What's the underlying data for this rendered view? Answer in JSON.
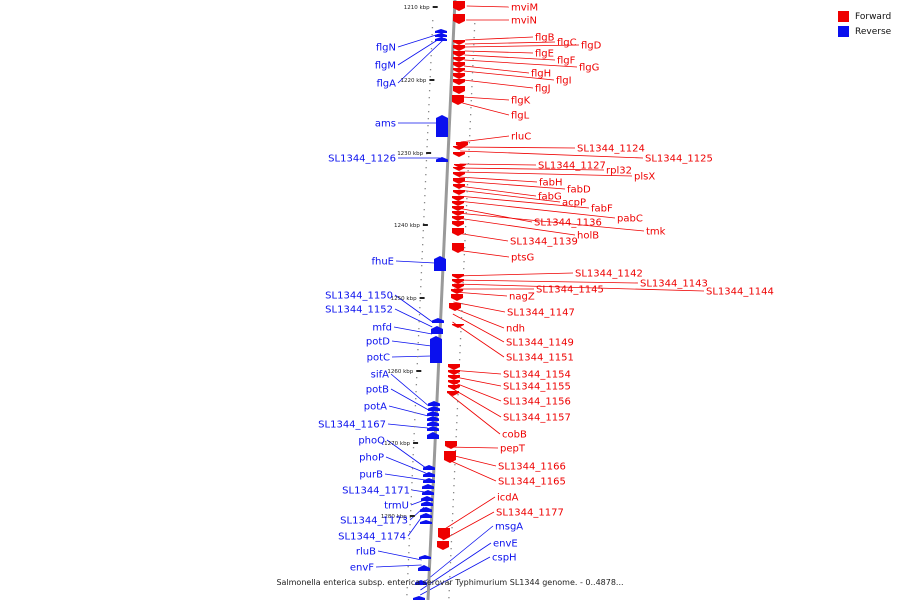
{
  "caption": "Salmonella enterica subsp. enterica serovar Typhimurium SL1344 genome. - 0..4878...",
  "legend": [
    {
      "label": "Forward",
      "color": "#ee0000"
    },
    {
      "label": "Reverse",
      "color": "#0a10ee"
    }
  ],
  "colors": {
    "forward": "#ee0000",
    "reverse": "#0a10ee",
    "axis": "#9a9a9a",
    "tick": "#222222"
  },
  "ticks": [
    "1210 kbp",
    "1220 kbp",
    "1230 kbp",
    "1240 kbp",
    "1250 kbp",
    "1260 kbp",
    "1270 kbp",
    "1280 kbp"
  ],
  "forward_genes": [
    "mviM",
    "mviN",
    "flgB",
    "flgC",
    "flgD",
    "flgE",
    "flgF",
    "flgG",
    "flgH",
    "flgI",
    "flgJ",
    "flgK",
    "flgL",
    "rluC",
    "SL1344_1124",
    "SL1344_1125",
    "SL1344_1127",
    "rpl32",
    "plsX",
    "fabH",
    "fabD",
    "fabG",
    "acpP",
    "fabF",
    "pabC",
    "SL1344_1136",
    "tmk",
    "holB",
    "SL1344_1139",
    "ptsG",
    "SL1344_1142",
    "SL1344_1143",
    "SL1344_1144",
    "SL1344_1145",
    "nagZ",
    "SL1344_1147",
    "ndh",
    "SL1344_1149",
    "SL1344_1151",
    "SL1344_1154",
    "SL1344_1155",
    "SL1344_1156",
    "SL1344_1157",
    "cobB",
    "pepT",
    "SL1344_1166",
    "SL1344_1165",
    "icdA",
    "SL1344_1177"
  ],
  "reverse_genes": [
    "flgN",
    "flgM",
    "flgA",
    "ams",
    "SL1344_1126",
    "fhuE",
    "SL1344_1150",
    "SL1344_1152",
    "mfd",
    "potD",
    "potC",
    "sifA",
    "potB",
    "potA",
    "SL1344_1167",
    "phoQ",
    "phoP",
    "purB",
    "SL1344_1171",
    "trmU",
    "SL1344_1173",
    "SL1344_1174",
    "rluB",
    "envF",
    "msgA",
    "envE",
    "cspH"
  ]
}
